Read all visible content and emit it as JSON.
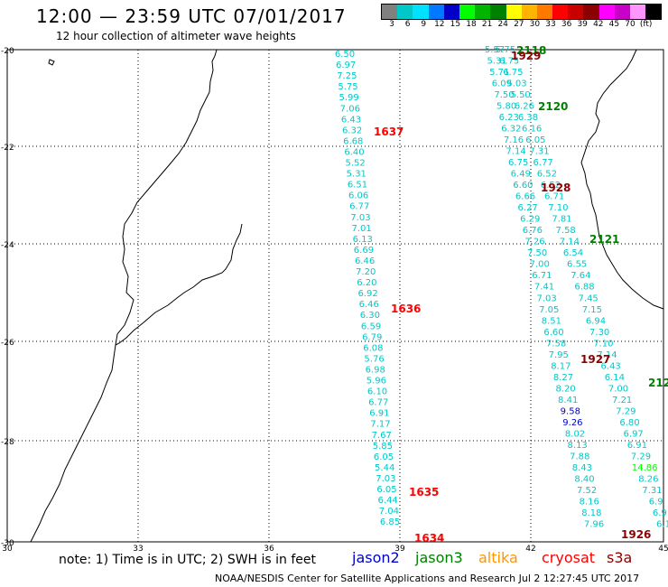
{
  "header": {
    "title": "12:00 — 23:59 UTC 07/01/2017",
    "subtitle": "12 hour collection of altimeter wave heights"
  },
  "scale": {
    "colors": [
      "#808080",
      "#00c8c8",
      "#00e0ff",
      "#0078ff",
      "#0000c8",
      "#00ff00",
      "#00b400",
      "#008000",
      "#ffff00",
      "#ffb400",
      "#ff7800",
      "#ff0000",
      "#c80000",
      "#8c0000",
      "#ff00ff",
      "#c800c8",
      "#ff96ff",
      "#000000"
    ],
    "labels": [
      "3",
      "6",
      "9",
      "12",
      "15",
      "18",
      "21",
      "24",
      "27",
      "30",
      "33",
      "36",
      "39",
      "42",
      "45",
      "70",
      "(ft)"
    ]
  },
  "map": {
    "lat_ticks": [
      "-20",
      "-22",
      "-24",
      "-26",
      "-28",
      "-30"
    ],
    "lon_ticks": [
      "30",
      "33",
      "36",
      "39",
      "42",
      "45"
    ]
  },
  "tracks": {
    "t1": {
      "color": "#00c8c8",
      "values": [
        "6.50",
        "6.97",
        "7.25",
        "5.75",
        "5.99",
        "7.06",
        "6.43",
        "6.32",
        "6.68",
        "6.40",
        "5.52",
        "5.31",
        "6.51",
        "6.06",
        "6.77",
        "7.03",
        "7.01",
        "6.13",
        "6.69",
        "6.46",
        "7.20",
        "6.20",
        "6.92",
        "6.46",
        "6.30",
        "6.59",
        "6.79",
        "6.08",
        "5.76",
        "6.98",
        "5.96",
        "6.10",
        "6.77",
        "6.91",
        "7.17",
        "7.67",
        "5.85",
        "6.05",
        "5.44",
        "7.03",
        "6.05",
        "6.44",
        "7.04",
        "6.85"
      ]
    },
    "t2": {
      "color": "#00c8c8",
      "values": [
        "5.57",
        "5.75",
        "5.31",
        "6.75",
        "5.71",
        "6.75",
        "6.09",
        "5.03",
        "7.50",
        "5.50",
        "5.80",
        "6.26",
        "6.23",
        "6.38",
        "6.32",
        "6.16",
        "7.16",
        "6.05",
        "7.14",
        "7.31",
        "6.75",
        "6.77",
        "6.49",
        "6.52",
        "6.60",
        "6.52",
        "6.66",
        "6.71",
        "6.27",
        "7.10",
        "6.29",
        "7.81",
        "6.76",
        "7.58",
        "7.26",
        "7.14",
        "7.50",
        "6.54",
        "7.00",
        "6.55",
        "6.71",
        "7.64",
        "7.41",
        "6.88",
        "7.03",
        "7.45",
        "7.05",
        "7.15",
        "8.51",
        "6.94",
        "6.60",
        "7.30",
        "7.58",
        "7.10",
        "7.95",
        "7.14",
        "8.17",
        "6.43",
        "8.27",
        "6.14",
        "8.20",
        "7.00",
        "8.41",
        "7.21",
        "9.58",
        "7.29",
        "9.26",
        "6.80",
        "8.02",
        "6.97",
        "8.13",
        "6.91",
        "7.88",
        "7.29",
        "8.43",
        "14.86",
        "8.40",
        "8.26",
        "7.52",
        "7.31",
        "8.16",
        "6.9",
        "8.18",
        "6.9",
        "7.96",
        "6.1"
      ]
    }
  },
  "time_labels": [
    {
      "text": "2118",
      "color": "#008000"
    },
    {
      "text": "1929",
      "color": "#8c0000"
    },
    {
      "text": "1637",
      "color": "#ff0000"
    },
    {
      "text": "2120",
      "color": "#008000"
    },
    {
      "text": "1928",
      "color": "#8c0000"
    },
    {
      "text": "2121",
      "color": "#008000"
    },
    {
      "text": "1636",
      "color": "#ff0000"
    },
    {
      "text": "1927",
      "color": "#8c0000"
    },
    {
      "text": "212",
      "color": "#008000"
    },
    {
      "text": "1635",
      "color": "#ff0000"
    },
    {
      "text": "1634",
      "color": "#ff0000"
    },
    {
      "text": "1926",
      "color": "#8c0000"
    }
  ],
  "footer": {
    "note": "note: 1) Time is in UTC; 2) SWH is in feet",
    "legend": [
      {
        "name": "jason2",
        "color": "#0000c8"
      },
      {
        "name": "jason3",
        "color": "#008000"
      },
      {
        "name": "altika",
        "color": "#ff9600"
      },
      {
        "name": "cryosat",
        "color": "#ff0000"
      },
      {
        "name": "s3a",
        "color": "#8c0000"
      }
    ],
    "credit": "NOAA/NESDIS Center for Satellite Applications and Research    Jul  2 12:27:45 UTC 2017"
  }
}
